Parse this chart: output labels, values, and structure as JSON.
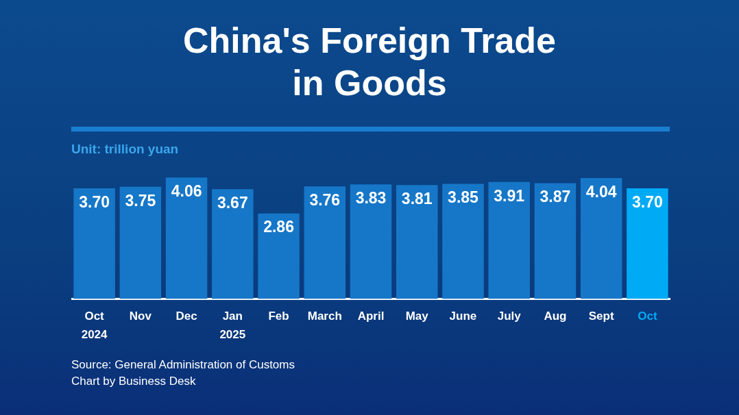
{
  "chart_data": {
    "type": "bar",
    "title": "China's Foreign Trade in Goods",
    "subtitle": "Unit: trillion yuan",
    "categories": [
      "Oct 2024",
      "Nov",
      "Dec",
      "Jan 2025",
      "Feb",
      "March",
      "April",
      "May",
      "June",
      "July",
      "Aug",
      "Sept",
      "Oct"
    ],
    "values": [
      3.7,
      3.75,
      4.06,
      3.67,
      2.86,
      3.76,
      3.83,
      3.81,
      3.85,
      3.91,
      3.87,
      4.04,
      3.7
    ],
    "colors": [
      "#1677c8",
      "#1677c8",
      "#1677c8",
      "#1677c8",
      "#1677c8",
      "#1677c8",
      "#1677c8",
      "#1677c8",
      "#1677c8",
      "#1677c8",
      "#1677c8",
      "#1677c8",
      "#00aaf5"
    ],
    "value_labels": [
      "3.70",
      "3.75",
      "4.06",
      "3.67",
      "2.86",
      "3.76",
      "3.83",
      "3.81",
      "3.85",
      "3.91",
      "3.87",
      "4.04",
      "3.70"
    ],
    "grid": false,
    "legend": false,
    "annotations": [
      "Source: General Administration of Customs",
      "Chart by Business Desk"
    ]
  }
}
